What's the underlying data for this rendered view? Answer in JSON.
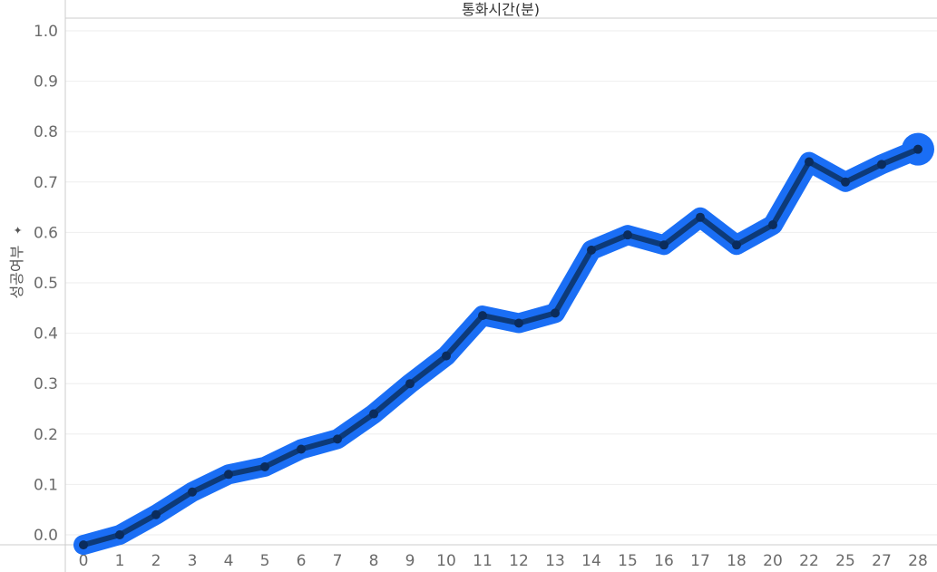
{
  "chart_data": {
    "type": "line",
    "title": "통화시간(분)",
    "xlabel": "",
    "ylabel": "성공여부",
    "ylabel_pin_icon": "pin-icon",
    "x": [
      "0",
      "1",
      "2",
      "3",
      "4",
      "5",
      "6",
      "7",
      "8",
      "9",
      "10",
      "11",
      "12",
      "13",
      "14",
      "15",
      "16",
      "17",
      "18",
      "20",
      "22",
      "25",
      "27",
      "28"
    ],
    "y": [
      -0.02,
      0.0,
      0.04,
      0.085,
      0.12,
      0.135,
      0.17,
      0.19,
      0.24,
      0.3,
      0.355,
      0.435,
      0.42,
      0.44,
      0.565,
      0.595,
      0.575,
      0.63,
      0.575,
      0.615,
      0.74,
      0.7,
      0.735,
      0.765
    ],
    "y_ticks": [
      "0.0",
      "0.1",
      "0.2",
      "0.3",
      "0.4",
      "0.5",
      "0.6",
      "0.7",
      "0.8",
      "0.9",
      "1.0"
    ],
    "ylim": [
      0,
      1.0
    ],
    "grid": true,
    "colors": {
      "band": "#1a6ef5",
      "line": "#0d3a78",
      "point": "#0b2c5c",
      "grid": "#eeeeee",
      "axis": "#cccccc"
    }
  }
}
